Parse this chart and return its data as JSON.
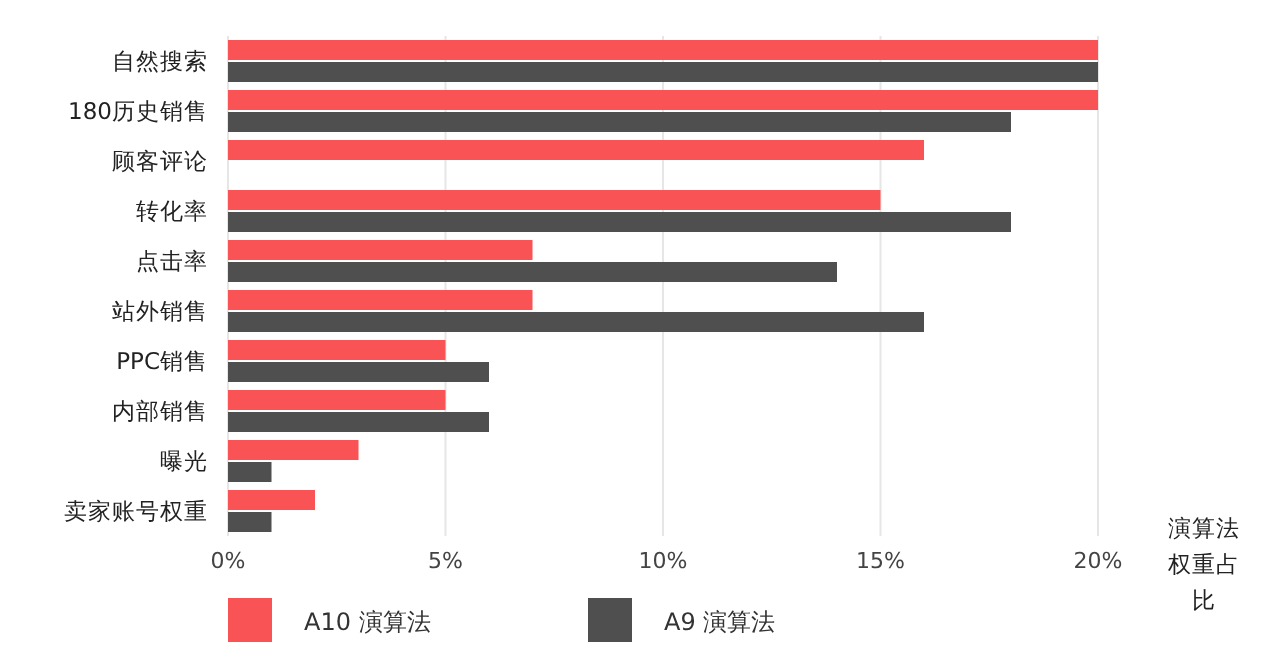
{
  "chart_data": {
    "type": "bar",
    "orientation": "horizontal",
    "categories": [
      "自然搜索",
      "180历史销售",
      "顾客评论",
      "转化率",
      "点击率",
      "站外销售",
      "PPC销售",
      "内部销售",
      "曝光",
      "卖家账号权重"
    ],
    "series": [
      {
        "name": "A10 演算法",
        "color": "#f95355",
        "values": [
          20,
          20,
          16,
          15,
          7,
          7,
          5,
          5,
          3,
          2
        ]
      },
      {
        "name": "A9 演算法",
        "color": "#4f4f4f",
        "values": [
          20,
          18,
          null,
          18,
          14,
          16,
          6,
          6,
          1,
          1
        ]
      }
    ],
    "xlim": [
      0,
      20
    ],
    "xticks": [
      {
        "value": 0,
        "label": "0%"
      },
      {
        "value": 5,
        "label": "5%"
      },
      {
        "value": 10,
        "label": "10%"
      },
      {
        "value": 15,
        "label": "15%"
      },
      {
        "value": 20,
        "label": "20%"
      }
    ],
    "xlabel": "演算法权重占比",
    "grid": "x",
    "legend": "bottom"
  }
}
